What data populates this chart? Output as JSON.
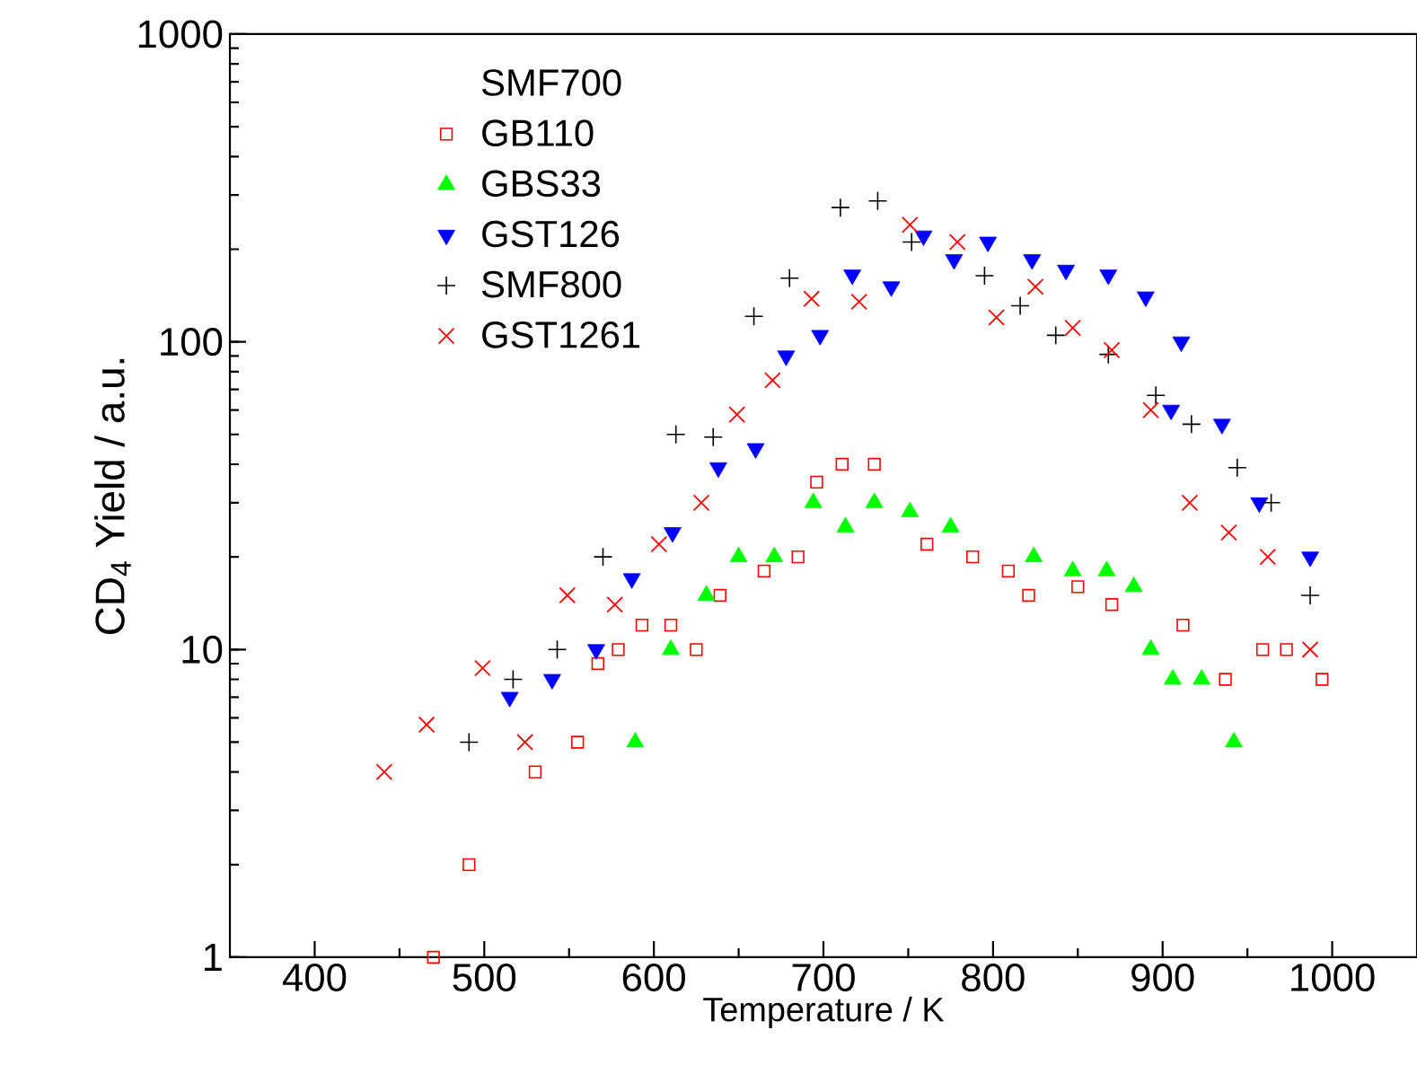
{
  "chart_data": {
    "type": "scatter",
    "xlabel": "Temperature / K",
    "ylabel": "CD$_{4}$ Yield / a.u.",
    "log": "y",
    "xlim": [
      350,
      1050
    ],
    "xticks": [
      400,
      500,
      600,
      700,
      800,
      900,
      1000
    ],
    "ylim": [
      1,
      1000
    ],
    "yticks": [
      1,
      10,
      100,
      1000
    ],
    "legend": "top left",
    "grid": false,
    "series": [
      {
        "name": "SMF700",
        "marker": "none"
      },
      {
        "name": "GB110",
        "color": "#ff0000",
        "marker": "square",
        "x": [
          470,
          491,
          530,
          555,
          567,
          579,
          593,
          610,
          625,
          639,
          665,
          685,
          696,
          711,
          730,
          761,
          788,
          809,
          821,
          850,
          870,
          912,
          937,
          959,
          973,
          994
        ],
        "values": [
          1,
          2,
          4,
          5,
          9,
          10,
          12,
          12,
          10,
          15,
          18,
          20,
          35,
          40,
          40,
          22,
          20,
          18,
          15,
          16,
          14,
          12,
          8,
          10,
          10,
          8
        ]
      },
      {
        "name": "GBS33",
        "color": "#00ff00",
        "marker": "triangle",
        "x": [
          589,
          610,
          631,
          650,
          671,
          694,
          713,
          730,
          751,
          775,
          824,
          847,
          867,
          883,
          893,
          906,
          923,
          942
        ],
        "values": [
          5,
          10,
          15,
          20,
          20,
          30,
          25,
          30,
          28,
          25,
          20,
          18,
          18,
          16,
          10,
          8,
          8,
          5
        ]
      },
      {
        "name": "GST126",
        "color": "#0000ff",
        "marker": "triangle-down",
        "x": [
          515,
          540,
          566,
          587,
          611,
          638,
          660,
          678,
          698,
          717,
          740,
          759,
          777,
          797,
          823,
          843,
          868,
          890,
          905,
          911,
          935,
          957,
          987
        ],
        "values": [
          7,
          8,
          10,
          17,
          24,
          39,
          45,
          90,
          105,
          165,
          151,
          221,
          185,
          211,
          185,
          171,
          165,
          140,
          60,
          100,
          54,
          30,
          20
        ]
      },
      {
        "name": "SMF800",
        "color": "#000000",
        "marker": "plus",
        "x": [
          491,
          517,
          543,
          570,
          613,
          635,
          659,
          680,
          710,
          732,
          752,
          795,
          816,
          837,
          868,
          896,
          917,
          944,
          964,
          987
        ],
        "values": [
          5,
          8,
          10,
          20,
          50,
          49,
          121,
          161,
          273,
          287,
          211,
          164,
          131,
          105,
          91,
          67,
          54,
          39,
          30,
          15
        ]
      },
      {
        "name": "GST1261",
        "color": "#ff0000",
        "marker": "cross",
        "x": [
          441,
          466,
          499,
          524,
          549,
          577,
          603,
          628,
          649,
          670,
          693,
          721,
          751,
          779,
          802,
          825,
          847,
          870,
          893,
          916,
          939,
          962,
          987
        ],
        "values": [
          4,
          5.7,
          8.7,
          5,
          15,
          14,
          22,
          30,
          58,
          75,
          138,
          135,
          240,
          211,
          120,
          151,
          111,
          94,
          60,
          30,
          24,
          20,
          10
        ]
      }
    ]
  }
}
